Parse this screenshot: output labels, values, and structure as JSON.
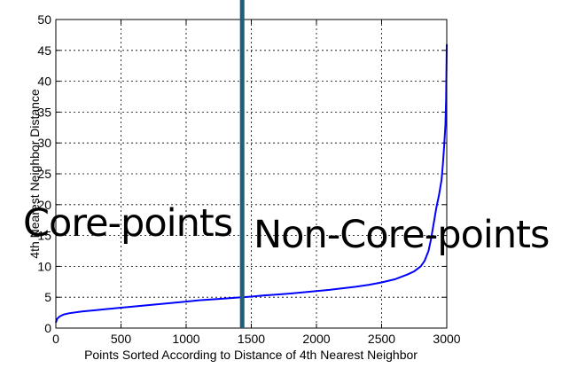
{
  "chart_data": {
    "type": "line",
    "title": "",
    "xlabel": "Points Sorted According to Distance of 4th Nearest Neighbor",
    "ylabel": "4th Nearest Neighbor Distance",
    "xlim": [
      0,
      3000
    ],
    "ylim": [
      0,
      50
    ],
    "xticks": [
      0,
      500,
      1000,
      1500,
      2000,
      2500,
      3000
    ],
    "yticks": [
      0,
      5,
      10,
      15,
      20,
      25,
      30,
      35,
      40,
      45,
      50
    ],
    "grid": true,
    "series": [
      {
        "color": "#0000ff",
        "x": [
          0,
          10,
          30,
          60,
          100,
          200,
          300,
          400,
          500,
          600,
          700,
          800,
          900,
          1000,
          1100,
          1200,
          1300,
          1400,
          1500,
          1600,
          1700,
          1800,
          1900,
          2000,
          2100,
          2200,
          2300,
          2400,
          2500,
          2600,
          2700,
          2750,
          2800,
          2830,
          2860,
          2880,
          2900,
          2920,
          2940,
          2960,
          2970,
          2980,
          2990,
          2995,
          3000
        ],
        "y": [
          0.9,
          1.5,
          1.9,
          2.2,
          2.4,
          2.7,
          2.9,
          3.1,
          3.3,
          3.5,
          3.7,
          3.9,
          4.1,
          4.3,
          4.5,
          4.65,
          4.8,
          4.95,
          5.1,
          5.3,
          5.45,
          5.6,
          5.8,
          6.0,
          6.2,
          6.45,
          6.7,
          7.0,
          7.4,
          7.9,
          8.7,
          9.2,
          10.0,
          10.9,
          12.5,
          14.5,
          17.0,
          19.5,
          21.5,
          24.0,
          26.5,
          29.5,
          33.0,
          37.0,
          46.0
        ]
      }
    ],
    "threshold_x": 1430,
    "threshold_color": "#1f5f7a",
    "annotations": [
      {
        "text": "Core-points"
      },
      {
        "text": "Non-Core-points"
      }
    ]
  }
}
